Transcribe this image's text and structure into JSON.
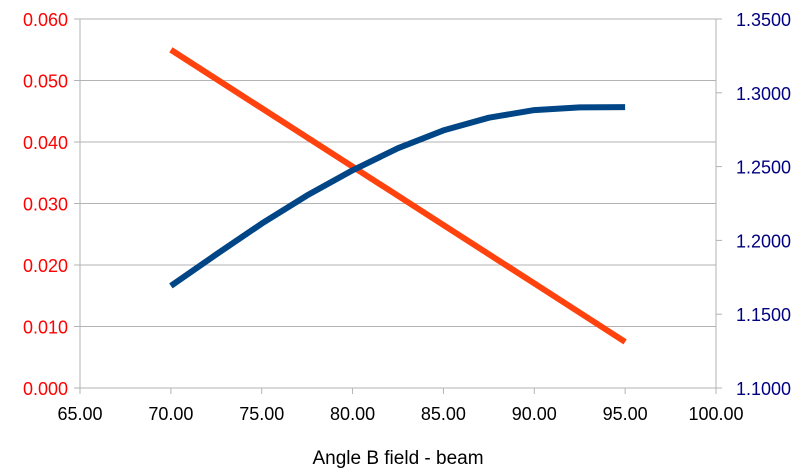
{
  "chart_data": {
    "type": "line",
    "title": "",
    "xlabel": "Angle B field - beam",
    "xlim": [
      65,
      100
    ],
    "x_ticks": [
      "65.00",
      "70.00",
      "75.00",
      "80.00",
      "85.00",
      "90.00",
      "95.00",
      "100.00"
    ],
    "y_left": {
      "lim": [
        0,
        0.06
      ],
      "ticks": [
        "0.000",
        "0.010",
        "0.020",
        "0.030",
        "0.040",
        "0.050",
        "0.060"
      ],
      "color": "#ff0000"
    },
    "y_right": {
      "lim": [
        1.1,
        1.35
      ],
      "ticks": [
        "1.1000",
        "1.1500",
        "1.2000",
        "1.2500",
        "1.3000",
        "1.3500"
      ],
      "color": "#000080"
    },
    "grid": true,
    "series": [
      {
        "axis": "left",
        "color": "#ff420e",
        "x": [
          70,
          75,
          80,
          85,
          90,
          95
        ],
        "y": [
          0.055,
          0.0455,
          0.036,
          0.0265,
          0.017,
          0.0075
        ]
      },
      {
        "axis": "right",
        "color": "#004586",
        "x": [
          70,
          72.5,
          75,
          77.5,
          80,
          82.5,
          85,
          87.5,
          90,
          92.5,
          95
        ],
        "y": [
          1.1692,
          1.1905,
          1.2114,
          1.2305,
          1.2475,
          1.2625,
          1.2745,
          1.2831,
          1.2883,
          1.2901,
          1.2903
        ]
      }
    ]
  }
}
